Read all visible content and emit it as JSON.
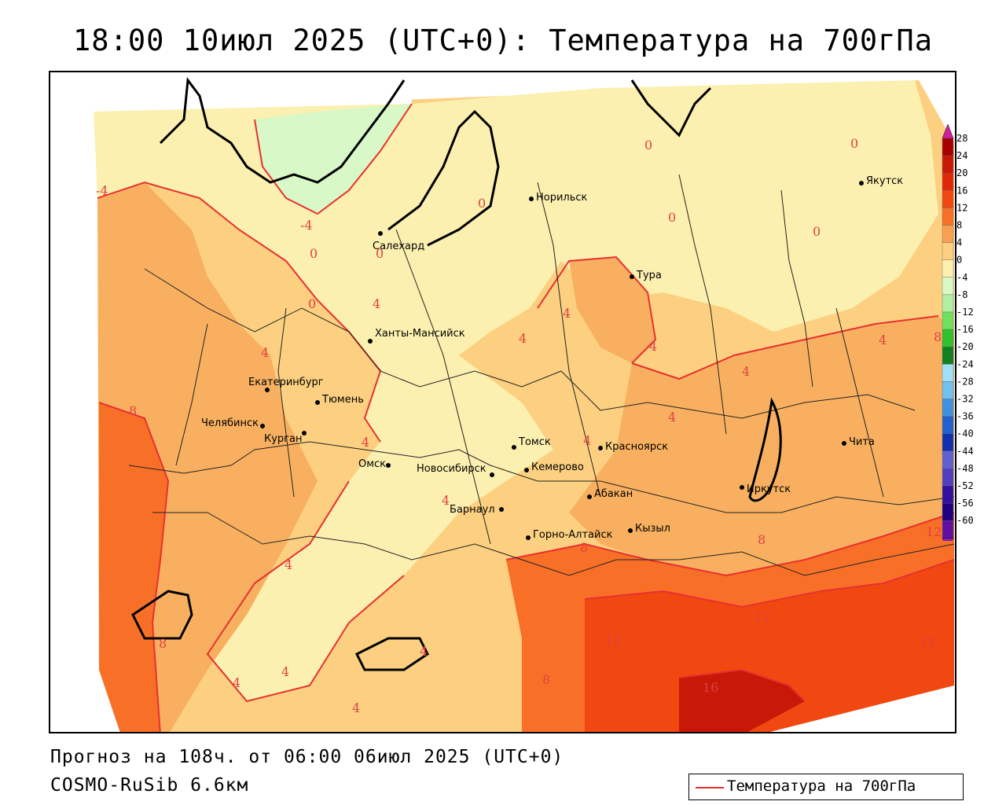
{
  "title": "18:00 10июл 2025 (UTC+0): Температура на 700гПа",
  "footer": {
    "forecast": "Прогноз на 108ч. от 06:00 06июл 2025 (UTC+0)",
    "model": "COSMO-RuSib 6.6км"
  },
  "legend": {
    "label": "Температура на 700гПа",
    "line_color": "#e83030"
  },
  "colorbar": {
    "levels": [
      "28",
      "24",
      "20",
      "16",
      "12",
      "8",
      "4",
      "0",
      "-4",
      "-8",
      "-12",
      "-16",
      "-20",
      "-24",
      "-28",
      "-32",
      "-36",
      "-40",
      "-44",
      "-48",
      "-52",
      "-56",
      "-60"
    ],
    "colors": [
      "#a80000",
      "#c81808",
      "#e02808",
      "#f04810",
      "#f87028",
      "#f8a050",
      "#fcd080",
      "#fcf0b0",
      "#d8f8c8",
      "#b0f0a0",
      "#70e060",
      "#30c030",
      "#108020",
      "#a0e0f8",
      "#70c0f0",
      "#4090e0",
      "#2060d0",
      "#1030b0",
      "#6060d0",
      "#5040c0",
      "#3010a0",
      "#200080",
      "#6010a0"
    ],
    "top_arrow_color": "#d020a0",
    "bottom_arrow_color": "#8020c0"
  },
  "cities": [
    {
      "name": "Норильск"
    },
    {
      "name": "Якутск"
    },
    {
      "name": "Салехард"
    },
    {
      "name": "Тура"
    },
    {
      "name": "Ханты-Мансийск"
    },
    {
      "name": "Екатеринбург"
    },
    {
      "name": "Тюмень"
    },
    {
      "name": "Челябинск"
    },
    {
      "name": "Курган"
    },
    {
      "name": "Омск"
    },
    {
      "name": "Новосибирск"
    },
    {
      "name": "Томск"
    },
    {
      "name": "Кемерово"
    },
    {
      "name": "Красноярск"
    },
    {
      "name": "Барнаул"
    },
    {
      "name": "Абакан"
    },
    {
      "name": "Кызыл"
    },
    {
      "name": "Горно-Алтайск"
    },
    {
      "name": "Иркутск"
    },
    {
      "name": "Чита"
    }
  ],
  "contour_labels": {
    "items": [
      "0",
      "0",
      "0",
      "0",
      "0",
      "0",
      "0",
      "0",
      "-4",
      "-4",
      "4",
      "4",
      "4",
      "4",
      "4",
      "4",
      "4",
      "4",
      "4",
      "4",
      "4",
      "4",
      "4",
      "4",
      "4",
      "4",
      "8",
      "8",
      "8",
      "8",
      "8",
      "8",
      "12",
      "12",
      "12",
      "12",
      "16"
    ]
  }
}
